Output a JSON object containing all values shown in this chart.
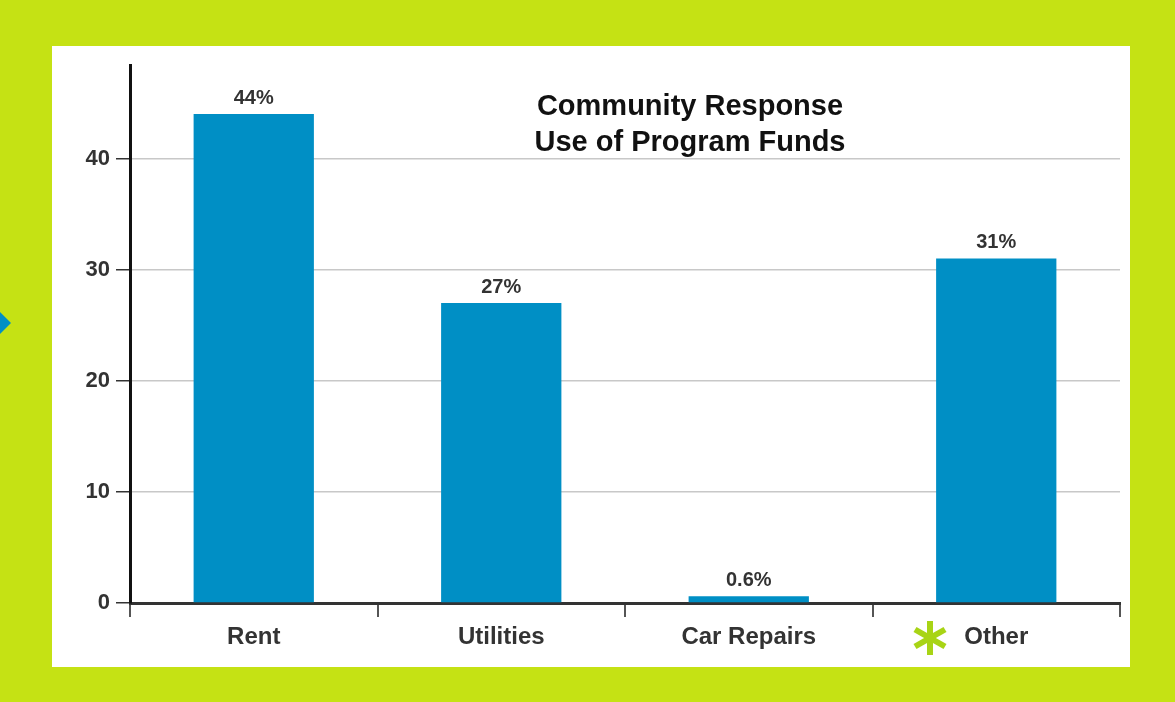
{
  "chart_data": {
    "type": "bar",
    "title": "Community Response\nUse of Program Funds",
    "categories": [
      "Rent",
      "Utilities",
      "Car Repairs",
      "Other"
    ],
    "values": [
      44,
      27,
      0.6,
      31
    ],
    "value_labels": [
      "44%",
      "27%",
      "0.6%",
      "31%"
    ],
    "color": "#008fc5",
    "ylim": [
      0,
      48.4
    ],
    "yticks": [
      0,
      10,
      20,
      30,
      40
    ],
    "grid": "y",
    "legend": false
  }
}
